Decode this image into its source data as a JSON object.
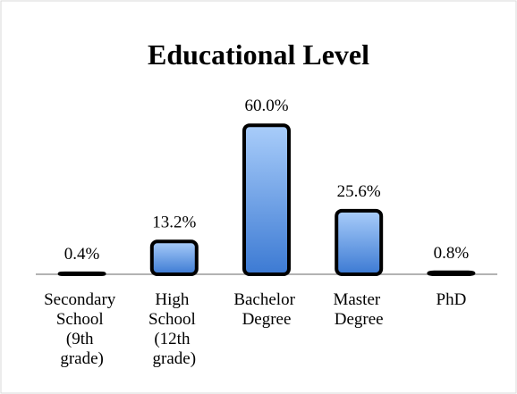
{
  "chart_data": {
    "type": "bar",
    "title": "Educational Level",
    "categories": [
      "Secondary School (9th grade)",
      "High School (12th grade)",
      "Bachelor Degree",
      "Master Degree",
      "PhD"
    ],
    "values": [
      0.4,
      13.2,
      60.0,
      25.6,
      0.8
    ],
    "value_labels": [
      "0.4%",
      "13.2%",
      "60.0%",
      "25.6%",
      "0.8%"
    ]
  }
}
